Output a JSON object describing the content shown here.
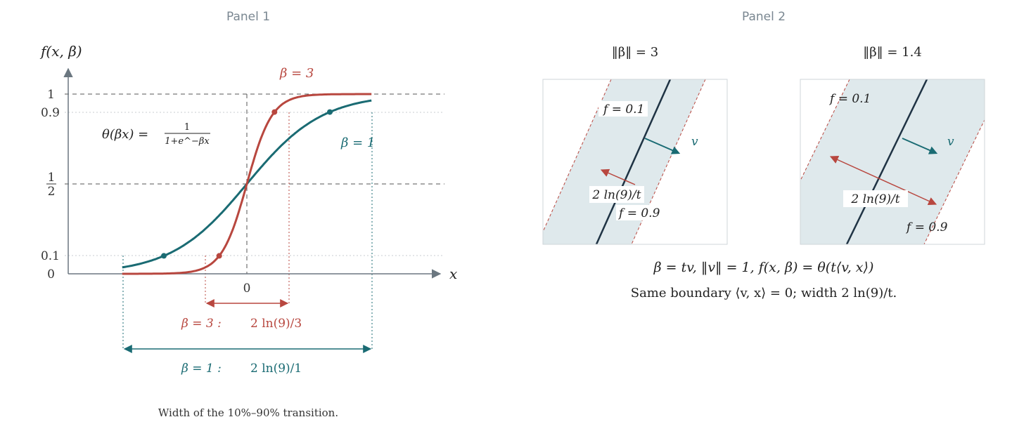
{
  "colors": {
    "red": "#b8473f",
    "teal": "#1a6b73",
    "axis": "#6b7780",
    "band": "#dfe9ec",
    "boundary": "#1f3344"
  },
  "panel1": {
    "title": "Panel 1",
    "y_axis_label": "f(x, β)",
    "x_axis_label": "x",
    "y_ticks": [
      "1",
      "0.9",
      "1/2",
      "0.1",
      "0"
    ],
    "x_tick": "0",
    "formula": "θ(βx) = 1/(1+e^−βx)",
    "formula_lhs": "θ(βx) =",
    "formula_num": "1",
    "formula_den": "1+e^−βx",
    "label_beta3": "β = 3",
    "label_beta1": "β = 1",
    "width_beta3": "β = 3 :   2 ln(9)/3",
    "width_beta3_name": "β = 3 :",
    "width_beta3_value": "2 ln(9)/3",
    "width_beta1": "β = 1 :   2 ln(9)/1",
    "width_beta1_name": "β = 1 :",
    "width_beta1_value": "2 ln(9)/1",
    "caption": "Width of the 10%–90% transition."
  },
  "panel2": {
    "title": "Panel 2",
    "left": {
      "title": "‖β‖ = 3",
      "f_low": "f = 0.1",
      "f_high": "f = 0.9",
      "v_label": "v",
      "width_label": "2 ln(9)/t"
    },
    "right": {
      "title": "‖β‖ = 1.4",
      "f_low": "f = 0.1",
      "f_high": "f = 0.9",
      "v_label": "v",
      "width_label": "2 ln(9)/t"
    },
    "equation": "β = tv,    ‖v‖ = 1,    f(x, β) = θ(t⟨v, x⟩)",
    "caption": "Same boundary ⟨v, x⟩ = 0; width 2 ln(9)/t."
  },
  "chart_data": {
    "type": "line",
    "title": "",
    "xlabel": "x",
    "ylabel": "f(x, β)",
    "function": "θ(βx) = 1/(1+e^−βx)",
    "xlim": [
      -3.3,
      3.3
    ],
    "ylim": [
      0,
      1
    ],
    "yticks": [
      0,
      0.1,
      0.5,
      0.9,
      1
    ],
    "series": [
      {
        "name": "β = 3",
        "beta": 3,
        "x": [
          -3.25,
          -2,
          -1.5,
          -1,
          -0.7325,
          -0.5,
          -0.25,
          0,
          0.25,
          0.5,
          0.7325,
          1,
          1.5,
          2,
          3.25
        ],
        "y": [
          0.0001,
          0.0025,
          0.011,
          0.047,
          0.1,
          0.182,
          0.321,
          0.5,
          0.679,
          0.818,
          0.9,
          0.953,
          0.989,
          0.9975,
          0.9999
        ]
      },
      {
        "name": "β = 1",
        "beta": 1,
        "x": [
          -3.25,
          -2.197,
          -1.5,
          -1,
          -0.5,
          0,
          0.5,
          1,
          1.5,
          2.197,
          3.25
        ],
        "y": [
          0.037,
          0.1,
          0.182,
          0.269,
          0.378,
          0.5,
          0.622,
          0.731,
          0.818,
          0.9,
          0.963
        ]
      }
    ]
  }
}
